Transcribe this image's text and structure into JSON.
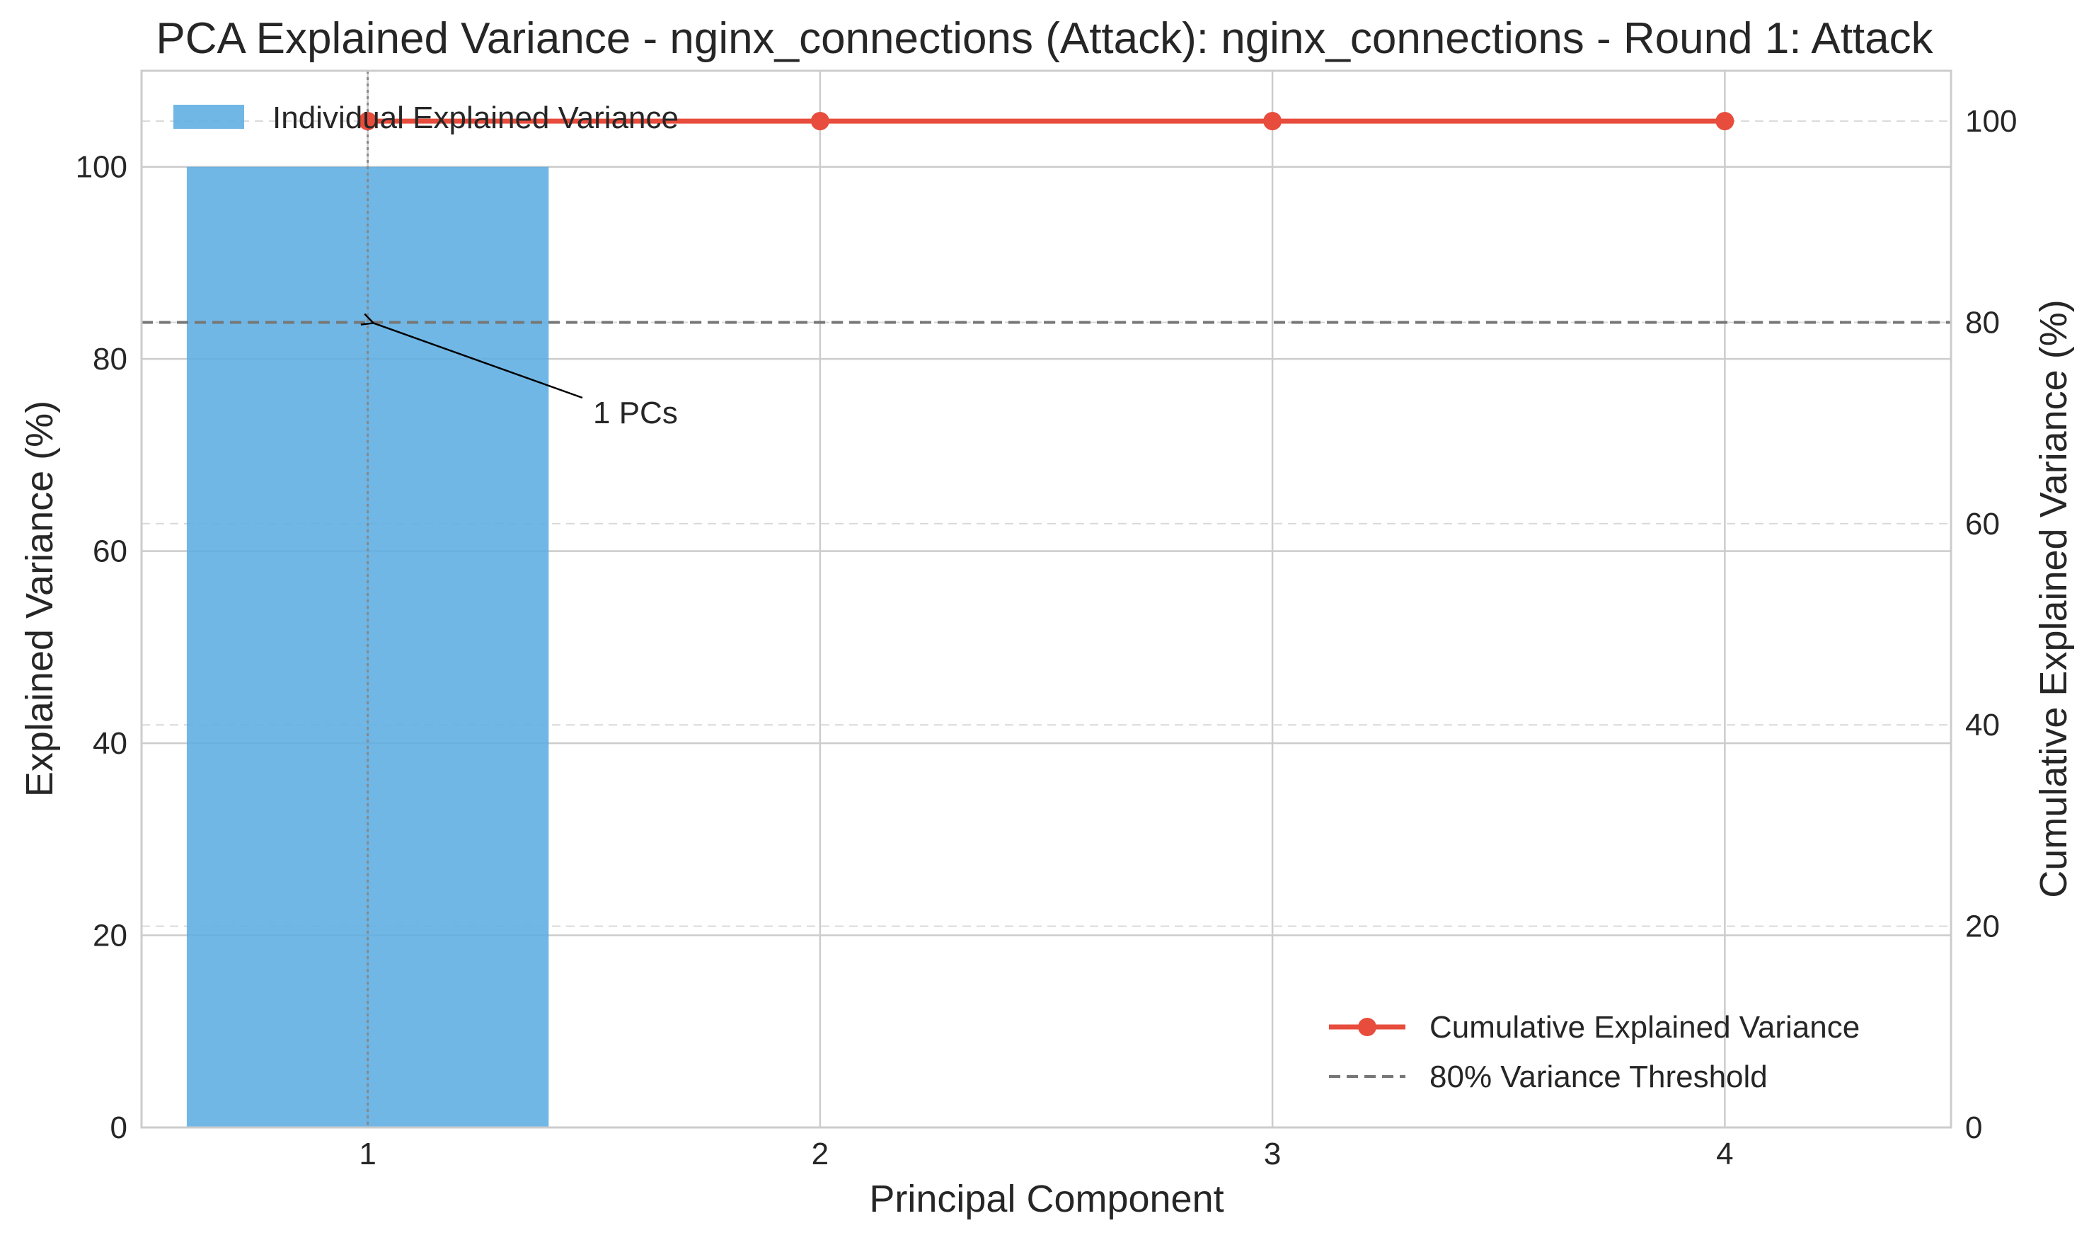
{
  "chart_data": {
    "type": "bar+line",
    "title": "PCA Explained Variance - nginx_connections (Attack): nginx_connections - Round 1: Attack",
    "xlabel": "Principal Component",
    "ylabel": "Explained Variance (%)",
    "y2label": "Cumulative Explained Variance (%)",
    "categories": [
      1,
      2,
      3,
      4
    ],
    "xlim": [
      0.5,
      4.5
    ],
    "ylim": [
      0,
      110
    ],
    "y2lim": [
      0,
      105
    ],
    "xticks": [
      "1",
      "2",
      "3",
      "4"
    ],
    "yticks": [
      "0",
      "20",
      "40",
      "60",
      "80",
      "100"
    ],
    "y2ticks": [
      "0",
      "20",
      "40",
      "60",
      "80",
      "100"
    ],
    "grid": true,
    "series": [
      {
        "name": "Individual Explained Variance",
        "kind": "bar",
        "axis": "left",
        "color": "#5dade2",
        "values": [
          100,
          0,
          0,
          0
        ]
      },
      {
        "name": "Cumulative Explained Variance",
        "kind": "line",
        "axis": "right",
        "color": "#e74c3c",
        "values": [
          100,
          100,
          100,
          100
        ]
      }
    ],
    "threshold": {
      "name": "80% Variance Threshold",
      "value": 80,
      "axis": "right",
      "color": "#777777"
    },
    "marker_x": 1,
    "annotation": {
      "text": "1 PCs",
      "x": 1,
      "y": 80
    },
    "legend_top": "top-left",
    "legend_bottom": "bottom-right"
  }
}
